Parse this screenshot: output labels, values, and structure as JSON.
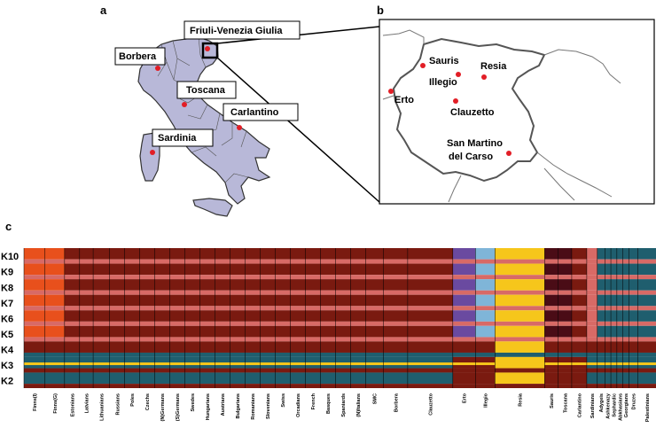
{
  "panels": {
    "a": "a",
    "b": "b",
    "c": "c"
  },
  "map_labels": [
    {
      "text": "Friuli-Venezia Giulia"
    },
    {
      "text": "Borbera"
    },
    {
      "text": "Toscana"
    },
    {
      "text": "Carlantino"
    },
    {
      "text": "Sardinia"
    }
  ],
  "towns": [
    {
      "text": "Sauris"
    },
    {
      "text": "Resia"
    },
    {
      "text": "Illegio"
    },
    {
      "text": "Erto"
    },
    {
      "text": "Clauzetto"
    },
    {
      "text": "San Martino"
    },
    {
      "text": "del Carso"
    }
  ],
  "colors": {
    "map_fill": "#b8b8d8",
    "point": "#e21e26",
    "K_orange": "#e8501c",
    "K_darkred": "#7a1a10",
    "K_pink": "#d86a66",
    "K_teal": "#1f5e6e",
    "K_yellow": "#f6c61b",
    "K_purple": "#6a4aa0",
    "K_lightblue": "#7fb5d8",
    "K_maroon": "#4a0c16",
    "K_green": "#3e8f4a",
    "K_peach": "#e89a70"
  },
  "chart_data": {
    "type": "bar",
    "title": "",
    "xlabel": "",
    "ylabel": "",
    "k_rows": [
      "K10",
      "K9",
      "K8",
      "K7",
      "K6",
      "K5",
      "K4",
      "K3",
      "K2"
    ],
    "categories": [
      "Finns(I)",
      "Finns(G)",
      "Estonians",
      "Latvians",
      "Lithuanians",
      "Russians",
      "Poles",
      "Czechs",
      "(N)Germans",
      "(S)Germans",
      "Swedes",
      "Hungarians",
      "Austrians",
      "Bulgarians",
      "Romanians",
      "Slovenians",
      "Swiss",
      "Orcadians",
      "French",
      "Basques",
      "Spaniards",
      "(N)Italians",
      "SMC",
      "Borbera",
      "Clauzetto",
      "Erto",
      "Illegio",
      "Resia",
      "Sauris",
      "Toscana",
      "Carlantino",
      "Sardinians",
      "Adygeis",
      "Ashkenazy",
      "Sephardic",
      "Abkhasians",
      "Georgians",
      "Druzes",
      "Palestinians"
    ],
    "dominant_component": [
      "orange",
      "orange",
      "darkred",
      "darkred",
      "darkred",
      "darkred",
      "darkred",
      "darkred",
      "darkred",
      "darkred",
      "darkred",
      "darkred",
      "darkred",
      "darkred",
      "darkred",
      "darkred",
      "darkred",
      "darkred",
      "darkred",
      "darkred",
      "darkred",
      "darkred",
      "darkred",
      "darkred",
      "darkred",
      "purple",
      "lightblue",
      "yellow",
      "maroon",
      "maroon",
      "darkred",
      "pink",
      "teal",
      "teal",
      "teal",
      "teal",
      "teal",
      "teal",
      "teal"
    ]
  }
}
